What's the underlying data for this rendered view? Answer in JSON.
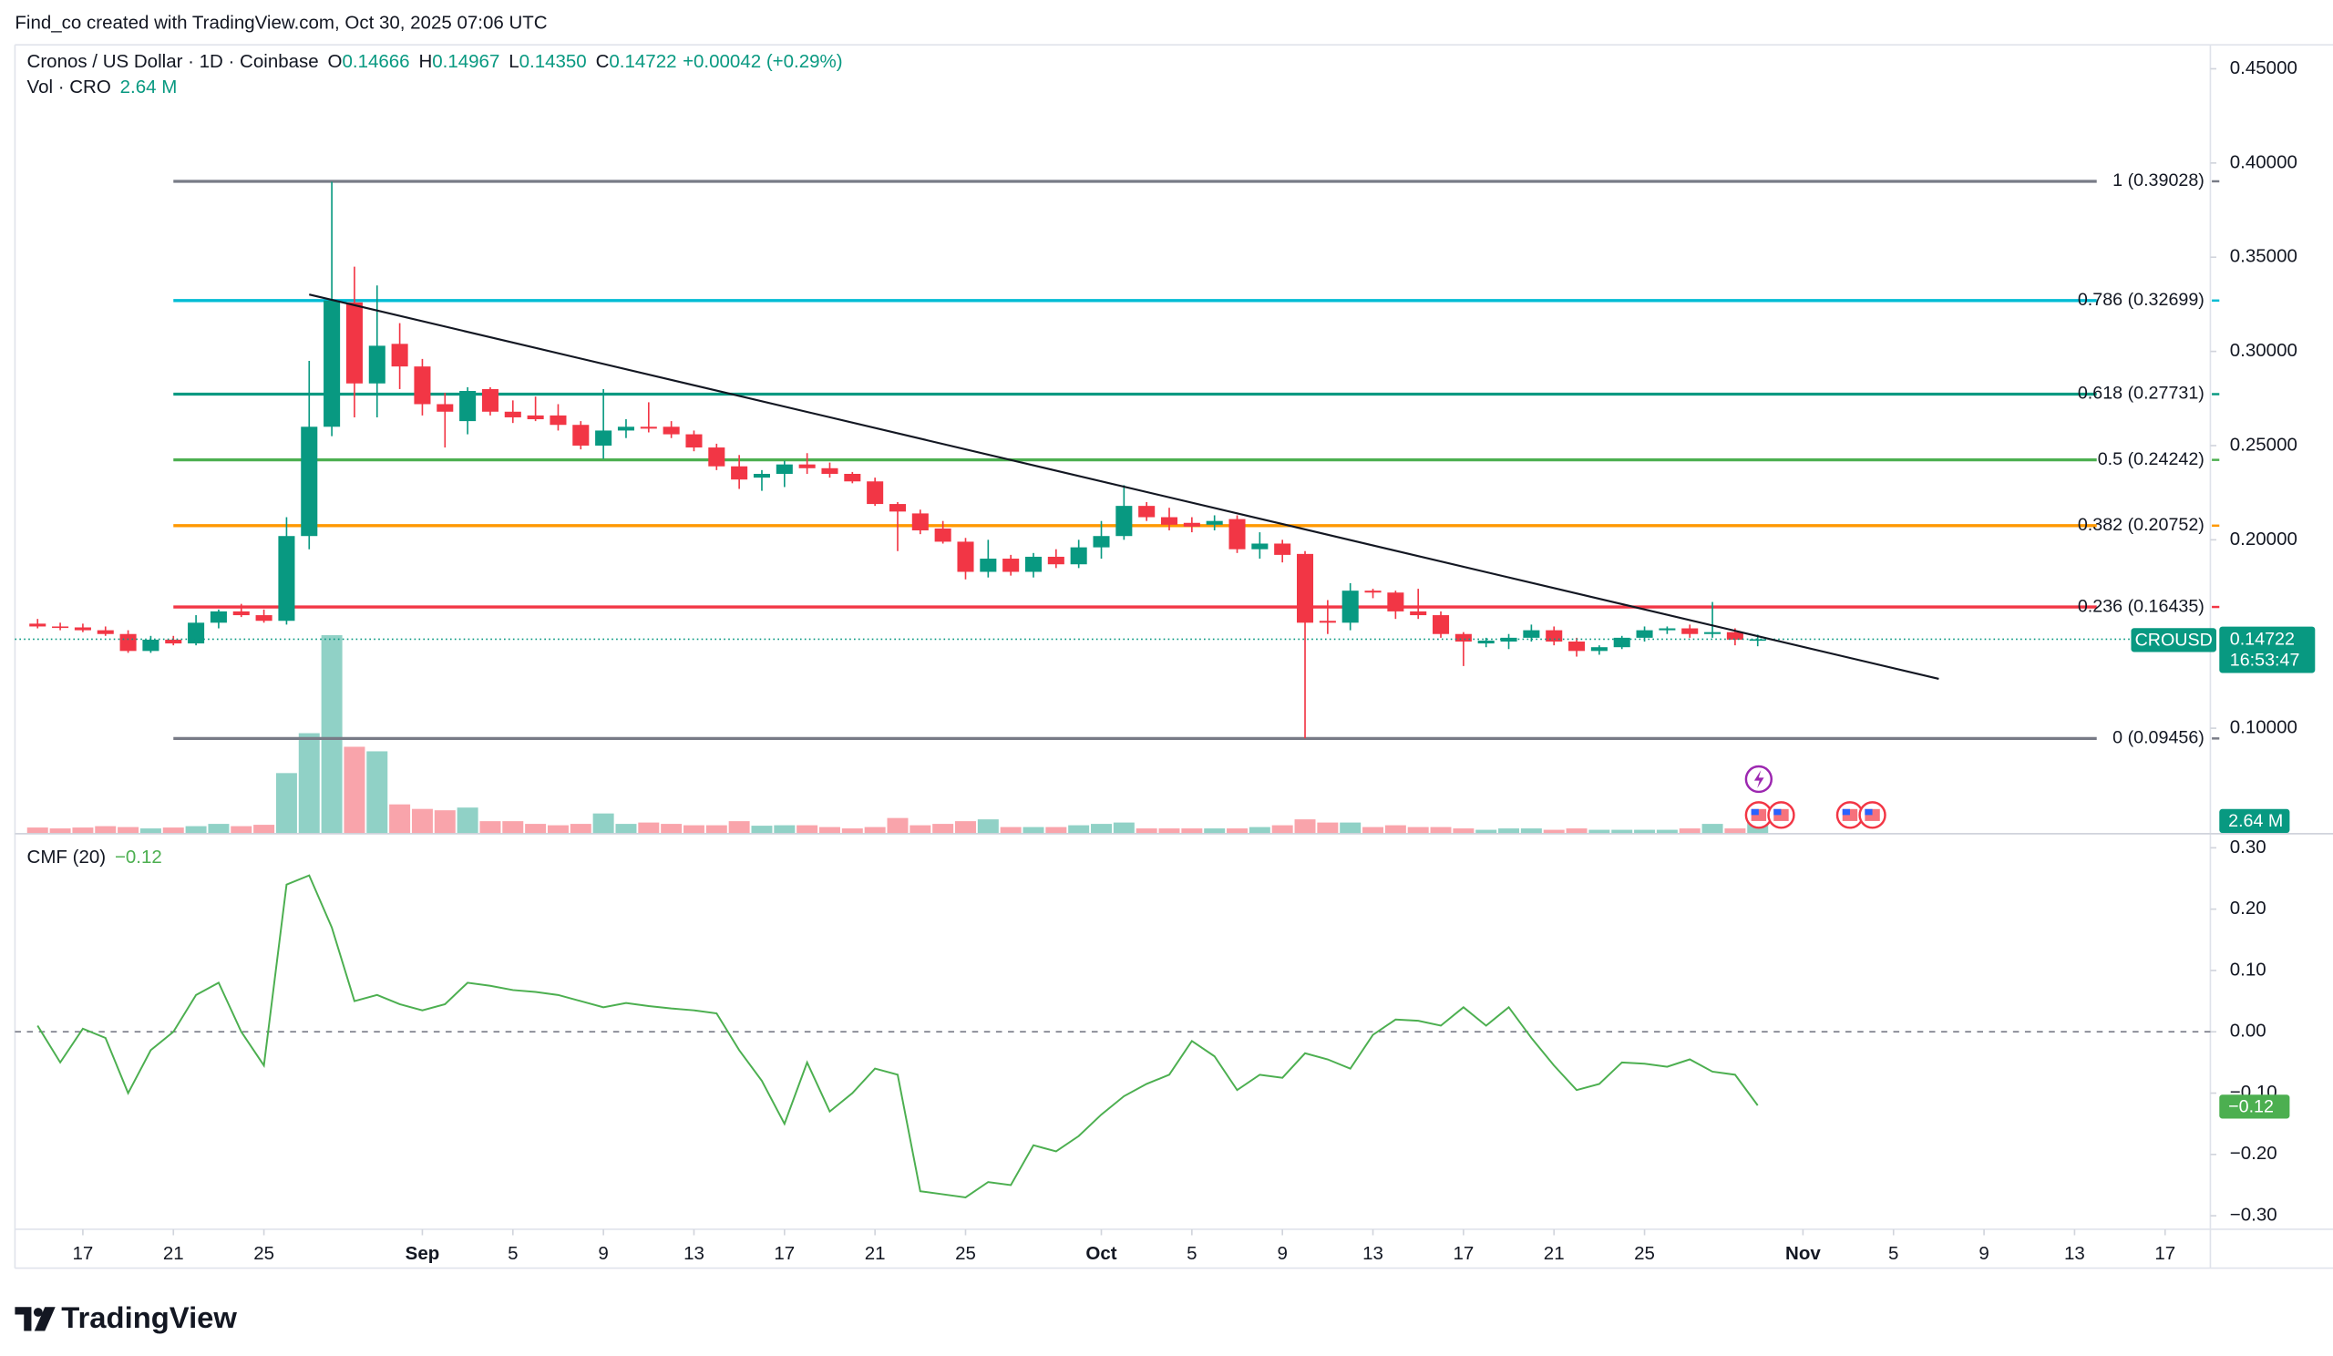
{
  "header": {
    "caption": "Find_co created with TradingView.com, Oct 30, 2025 07:06 UTC",
    "symbol": "Cronos / US Dollar · 1D · Coinbase",
    "ohlc": [
      {
        "key": "O",
        "value": "0.14666"
      },
      {
        "key": "H",
        "value": "0.14967"
      },
      {
        "key": "L",
        "value": "0.14350"
      },
      {
        "key": "C",
        "value": "0.14722"
      }
    ],
    "change": "+0.00042 (+0.29%)",
    "volume_title": "Vol · CRO",
    "volume_value": "2.64 M"
  },
  "chart_data": [
    {
      "type": "candlestick",
      "dates": [
        "2025-08-15",
        "2025-08-16",
        "2025-08-17",
        "2025-08-18",
        "2025-08-19",
        "2025-08-20",
        "2025-08-21",
        "2025-08-22",
        "2025-08-23",
        "2025-08-24",
        "2025-08-25",
        "2025-08-26",
        "2025-08-27",
        "2025-08-28",
        "2025-08-29",
        "2025-08-30",
        "2025-08-31",
        "2025-09-01",
        "2025-09-02",
        "2025-09-03",
        "2025-09-04",
        "2025-09-05",
        "2025-09-06",
        "2025-09-07",
        "2025-09-08",
        "2025-09-09",
        "2025-09-10",
        "2025-09-11",
        "2025-09-12",
        "2025-09-13",
        "2025-09-14",
        "2025-09-15",
        "2025-09-16",
        "2025-09-17",
        "2025-09-18",
        "2025-09-19",
        "2025-09-20",
        "2025-09-21",
        "2025-09-22",
        "2025-09-23",
        "2025-09-24",
        "2025-09-25",
        "2025-09-26",
        "2025-09-27",
        "2025-09-28",
        "2025-09-29",
        "2025-09-30",
        "2025-10-01",
        "2025-10-02",
        "2025-10-03",
        "2025-10-04",
        "2025-10-05",
        "2025-10-06",
        "2025-10-07",
        "2025-10-08",
        "2025-10-09",
        "2025-10-10",
        "2025-10-11",
        "2025-10-12",
        "2025-10-13",
        "2025-10-14",
        "2025-10-15",
        "2025-10-16",
        "2025-10-17",
        "2025-10-18",
        "2025-10-19",
        "2025-10-20",
        "2025-10-21",
        "2025-10-22",
        "2025-10-23",
        "2025-10-24",
        "2025-10-25",
        "2025-10-26",
        "2025-10-27",
        "2025-10-28",
        "2025-10-29",
        "2025-10-30"
      ],
      "open": [
        0.1555,
        0.154,
        0.1535,
        0.152,
        0.15,
        0.141,
        0.147,
        0.145,
        0.156,
        0.162,
        0.16,
        0.157,
        0.202,
        0.26,
        0.326,
        0.283,
        0.304,
        0.292,
        0.272,
        0.263,
        0.28,
        0.268,
        0.266,
        0.266,
        0.261,
        0.25,
        0.258,
        0.26,
        0.26,
        0.256,
        0.249,
        0.239,
        0.233,
        0.235,
        0.24,
        0.238,
        0.235,
        0.231,
        0.219,
        0.214,
        0.206,
        0.199,
        0.183,
        0.19,
        0.183,
        0.191,
        0.187,
        0.196,
        0.202,
        0.218,
        0.212,
        0.209,
        0.208,
        0.211,
        0.195,
        0.198,
        0.1925,
        0.157,
        0.156,
        0.173,
        0.172,
        0.162,
        0.16,
        0.15,
        0.145,
        0.146,
        0.148,
        0.152,
        0.146,
        0.141,
        0.143,
        0.148,
        0.152,
        0.153,
        0.15,
        0.151,
        0.14666
      ],
      "high": [
        0.158,
        0.156,
        0.1555,
        0.154,
        0.152,
        0.149,
        0.149,
        0.16,
        0.163,
        0.166,
        0.163,
        0.212,
        0.295,
        0.39,
        0.345,
        0.335,
        0.315,
        0.296,
        0.278,
        0.281,
        0.281,
        0.274,
        0.276,
        0.272,
        0.263,
        0.28,
        0.264,
        0.273,
        0.263,
        0.258,
        0.251,
        0.245,
        0.237,
        0.242,
        0.246,
        0.241,
        0.236,
        0.233,
        0.22,
        0.216,
        0.21,
        0.201,
        0.2,
        0.192,
        0.193,
        0.195,
        0.2,
        0.21,
        0.229,
        0.22,
        0.217,
        0.212,
        0.213,
        0.213,
        0.204,
        0.2,
        0.194,
        0.168,
        0.177,
        0.174,
        0.173,
        0.174,
        0.162,
        0.151,
        0.148,
        0.15,
        0.155,
        0.154,
        0.148,
        0.144,
        0.149,
        0.154,
        0.154,
        0.155,
        0.167,
        0.153,
        0.14967
      ],
      "low": [
        0.153,
        0.152,
        0.151,
        0.149,
        0.14,
        0.14,
        0.144,
        0.144,
        0.153,
        0.159,
        0.156,
        0.155,
        0.195,
        0.255,
        0.265,
        0.265,
        0.28,
        0.266,
        0.249,
        0.256,
        0.266,
        0.262,
        0.263,
        0.258,
        0.248,
        0.243,
        0.254,
        0.257,
        0.254,
        0.247,
        0.237,
        0.227,
        0.226,
        0.228,
        0.235,
        0.233,
        0.23,
        0.218,
        0.194,
        0.203,
        0.198,
        0.179,
        0.18,
        0.181,
        0.18,
        0.185,
        0.185,
        0.19,
        0.2,
        0.21,
        0.205,
        0.204,
        0.205,
        0.193,
        0.19,
        0.188,
        0.0946,
        0.15,
        0.152,
        0.169,
        0.158,
        0.158,
        0.148,
        0.133,
        0.143,
        0.142,
        0.146,
        0.144,
        0.138,
        0.139,
        0.142,
        0.146,
        0.15,
        0.148,
        0.148,
        0.144,
        0.1435
      ],
      "close": [
        0.154,
        0.1535,
        0.152,
        0.15,
        0.141,
        0.147,
        0.145,
        0.156,
        0.162,
        0.16,
        0.157,
        0.202,
        0.26,
        0.327,
        0.283,
        0.303,
        0.292,
        0.272,
        0.268,
        0.279,
        0.268,
        0.265,
        0.264,
        0.261,
        0.25,
        0.258,
        0.26,
        0.259,
        0.256,
        0.249,
        0.239,
        0.232,
        0.235,
        0.24,
        0.238,
        0.235,
        0.231,
        0.219,
        0.215,
        0.205,
        0.199,
        0.183,
        0.19,
        0.183,
        0.191,
        0.187,
        0.196,
        0.202,
        0.218,
        0.212,
        0.208,
        0.207,
        0.21,
        0.195,
        0.198,
        0.192,
        0.156,
        0.156,
        0.173,
        0.172,
        0.162,
        0.16,
        0.15,
        0.146,
        0.1465,
        0.148,
        0.152,
        0.146,
        0.141,
        0.143,
        0.148,
        0.152,
        0.153,
        0.15,
        0.151,
        0.147,
        0.14722
      ],
      "volume": [
        1.2,
        1.0,
        1.2,
        1.5,
        1.3,
        1.0,
        1.2,
        1.5,
        2.0,
        1.5,
        1.8,
        13.2,
        22,
        43.6,
        19,
        18,
        6.3,
        5.3,
        5.0,
        5.6,
        2.6,
        2.6,
        2.0,
        1.7,
        2.0,
        4.3,
        2.0,
        2.3,
        2.0,
        1.7,
        1.7,
        2.6,
        1.6,
        1.7,
        1.7,
        1.3,
        1.0,
        1.3,
        3.3,
        1.7,
        2.0,
        2.6,
        3.0,
        1.3,
        1.3,
        1.3,
        1.7,
        2.0,
        2.3,
        1.0,
        1.0,
        1.0,
        1.0,
        1.0,
        1.3,
        1.7,
        3.0,
        2.3,
        2.3,
        1.3,
        1.7,
        1.3,
        1.3,
        1.0,
        0.7,
        1.0,
        1.0,
        0.7,
        1.0,
        0.7,
        0.7,
        0.7,
        0.7,
        1.0,
        2.0,
        1.0,
        2.64
      ],
      "vlim": [
        0,
        60
      ],
      "up_color": "#089981",
      "down_color": "#f23645",
      "xlim": [
        "2025-08-14",
        "2025-11-19"
      ],
      "xticks": [
        {
          "value": "2025-08-17",
          "label": "17"
        },
        {
          "value": "2025-08-21",
          "label": "21"
        },
        {
          "value": "2025-08-25",
          "label": "25"
        },
        {
          "value": "2025-09-01",
          "label": "Sep"
        },
        {
          "value": "2025-09-05",
          "label": "5"
        },
        {
          "value": "2025-09-09",
          "label": "9"
        },
        {
          "value": "2025-09-13",
          "label": "13"
        },
        {
          "value": "2025-09-17",
          "label": "17"
        },
        {
          "value": "2025-09-21",
          "label": "21"
        },
        {
          "value": "2025-09-25",
          "label": "25"
        },
        {
          "value": "2025-10-01",
          "label": "Oct"
        },
        {
          "value": "2025-10-05",
          "label": "5"
        },
        {
          "value": "2025-10-09",
          "label": "9"
        },
        {
          "value": "2025-10-13",
          "label": "13"
        },
        {
          "value": "2025-10-17",
          "label": "17"
        },
        {
          "value": "2025-10-21",
          "label": "21"
        },
        {
          "value": "2025-10-25",
          "label": "25"
        },
        {
          "value": "2025-11-01",
          "label": "Nov"
        },
        {
          "value": "2025-11-05",
          "label": "5"
        },
        {
          "value": "2025-11-09",
          "label": "9"
        },
        {
          "value": "2025-11-13",
          "label": "13"
        },
        {
          "value": "2025-11-17",
          "label": "17"
        }
      ],
      "ylim": [
        0.0444,
        0.4627
      ],
      "yticks": [
        {
          "value": 0.45,
          "label": "0.45000"
        },
        {
          "value": 0.4,
          "label": "0.40000"
        },
        {
          "value": 0.35,
          "label": "0.35000"
        },
        {
          "value": 0.3,
          "label": "0.30000"
        },
        {
          "value": 0.25,
          "label": "0.25000"
        },
        {
          "value": 0.2,
          "label": "0.20000"
        },
        {
          "value": 0.1,
          "label": "0.10000"
        }
      ],
      "fib_levels": [
        {
          "value": 0.39028,
          "label": "1 (0.39028)",
          "color": "#787b86"
        },
        {
          "value": 0.32699,
          "label": "0.786 (0.32699)",
          "color": "#00bcd4"
        },
        {
          "value": 0.27731,
          "label": "0.618 (0.27731)",
          "color": "#089981"
        },
        {
          "value": 0.24242,
          "label": "0.5 (0.24242)",
          "color": "#4caf50"
        },
        {
          "value": 0.20752,
          "label": "0.382 (0.20752)",
          "color": "#ff9800"
        },
        {
          "value": 0.16435,
          "label": "0.236 (0.16435)",
          "color": "#f23645"
        },
        {
          "value": 0.09456,
          "label": "0 (0.09456)",
          "color": "#787b86"
        }
      ],
      "trendline": {
        "x": [
          "2025-08-27",
          "2025-11-07"
        ],
        "y": [
          0.3302,
          0.1262
        ],
        "color": "#131722"
      },
      "last_price": {
        "symbol": "CROUSD",
        "label": "0.14722",
        "countdown": "16:53:47"
      },
      "volume_tag": "2.64 M"
    },
    {
      "type": "line",
      "title": "CMF (20)",
      "value_label": "−0.12",
      "color": "#4caf50",
      "values": [
        0.01,
        -0.05,
        0.005,
        -0.01,
        -0.1,
        -0.03,
        0.0,
        0.06,
        0.08,
        0.0,
        -0.055,
        0.24,
        0.255,
        0.17,
        0.05,
        0.06,
        0.045,
        0.035,
        0.045,
        0.08,
        0.075,
        0.068,
        0.065,
        0.06,
        0.05,
        0.04,
        0.047,
        0.042,
        0.038,
        0.035,
        0.03,
        -0.03,
        -0.08,
        -0.15,
        -0.05,
        -0.13,
        -0.1,
        -0.06,
        -0.07,
        -0.26,
        -0.265,
        -0.27,
        -0.245,
        -0.25,
        -0.185,
        -0.195,
        -0.17,
        -0.135,
        -0.105,
        -0.085,
        -0.07,
        -0.015,
        -0.04,
        -0.095,
        -0.07,
        -0.075,
        -0.035,
        -0.045,
        -0.06,
        -0.005,
        0.02,
        0.018,
        0.01,
        0.04,
        0.01,
        0.04,
        -0.01,
        -0.055,
        -0.095,
        -0.085,
        -0.05,
        -0.052,
        -0.057,
        -0.045,
        -0.065,
        -0.07,
        -0.12
      ],
      "ylim": [
        -0.322,
        0.312
      ],
      "yticks": [
        {
          "value": 0.3,
          "label": "0.30"
        },
        {
          "value": 0.2,
          "label": "0.20"
        },
        {
          "value": 0.1,
          "label": "0.10"
        },
        {
          "value": 0,
          "label": "0.00"
        },
        {
          "value": -0.1,
          "label": "−0.10"
        },
        {
          "value": -0.2,
          "label": "−0.20"
        },
        {
          "value": -0.3,
          "label": "−0.30"
        }
      ]
    }
  ],
  "footer": {
    "logo": "TradingView"
  }
}
